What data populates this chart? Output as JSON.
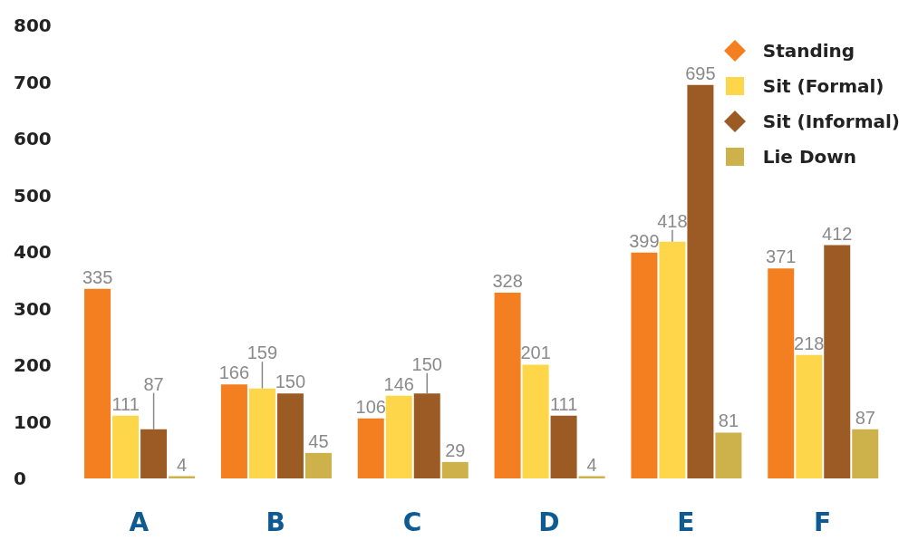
{
  "chart_data": {
    "type": "bar",
    "categories": [
      "A",
      "B",
      "C",
      "D",
      "E",
      "F"
    ],
    "series": [
      {
        "name": "Standing",
        "color": "#f47f20",
        "marker": "diamond",
        "values": [
          335,
          166,
          106,
          328,
          399,
          371
        ]
      },
      {
        "name": "Sit (Formal)",
        "color": "#fdd64a",
        "marker": "square",
        "values": [
          111,
          159,
          146,
          201,
          418,
          218
        ]
      },
      {
        "name": "Sit (Informal)",
        "color": "#9c5b25",
        "marker": "diamond",
        "values": [
          87,
          150,
          150,
          111,
          695,
          412
        ]
      },
      {
        "name": "Lie Down",
        "color": "#cdb24c",
        "marker": "square",
        "values": [
          4,
          45,
          29,
          4,
          81,
          87
        ]
      }
    ],
    "ylim": [
      0,
      800
    ],
    "yticks": [
      0,
      100,
      200,
      300,
      400,
      500,
      600,
      700,
      800
    ],
    "grid": false,
    "legend": "top right",
    "data_labels": true
  }
}
